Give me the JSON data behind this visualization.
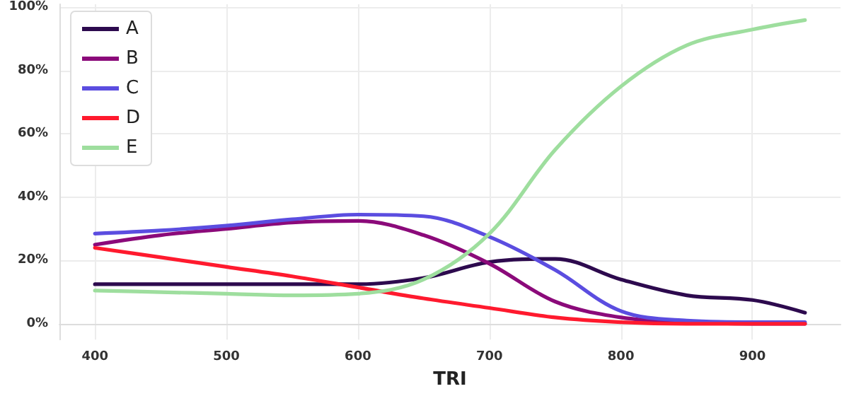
{
  "chart_data": {
    "type": "line",
    "xlabel": "TRI",
    "x": [
      400,
      450,
      500,
      550,
      600,
      650,
      700,
      750,
      800,
      850,
      900,
      940
    ],
    "series": [
      {
        "name": "A",
        "color": "#2d0a4e",
        "values": [
          12.5,
          12.5,
          12.5,
          12.5,
          12.5,
          14.5,
          19.5,
          20.5,
          14,
          9,
          7.5,
          3.5
        ]
      },
      {
        "name": "B",
        "color": "#8b0a7a",
        "values": [
          25,
          28,
          30,
          32,
          32.5,
          28,
          19,
          7,
          2,
          0.5,
          0,
          0
        ]
      },
      {
        "name": "C",
        "color": "#5b4de0",
        "values": [
          28.5,
          29.5,
          31,
          33,
          34.5,
          34,
          27.5,
          17,
          4,
          1,
          0.5,
          0.5
        ]
      },
      {
        "name": "D",
        "color": "#ff1a2e",
        "values": [
          24,
          21,
          18,
          15,
          11.5,
          8,
          5,
          2,
          0.5,
          0,
          0,
          0
        ]
      },
      {
        "name": "E",
        "color": "#9ede9e",
        "values": [
          10.5,
          10,
          9.5,
          9,
          9.5,
          14,
          28.5,
          55,
          75,
          88,
          93,
          96
        ]
      }
    ],
    "xlim": [
      373,
      967
    ],
    "xticks": [
      400,
      500,
      600,
      700,
      800,
      900
    ],
    "ylim": [
      -5,
      101
    ],
    "yticks": [
      {
        "value": 0,
        "label": "0%"
      },
      {
        "value": 20,
        "label": "20%"
      },
      {
        "value": 40,
        "label": "40%"
      },
      {
        "value": 60,
        "label": "60%"
      },
      {
        "value": 80,
        "label": "80%"
      },
      {
        "value": 100,
        "label": "100%"
      }
    ],
    "grid": true,
    "legend": "top left",
    "marker": "none",
    "line_style": "solid"
  }
}
